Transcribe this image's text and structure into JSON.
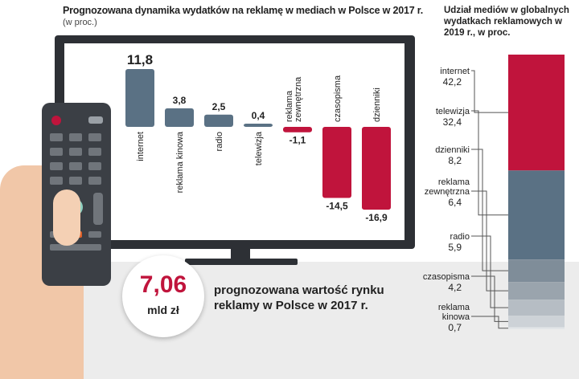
{
  "chart_data": [
    {
      "type": "bar",
      "title": "Prognozowana dynamika wydatków na reklamę w mediach w Polsce w 2017 r.",
      "subtitle": "(w proc.)",
      "categories": [
        "internet",
        "reklama kinowa",
        "radio",
        "telewizja",
        "reklama zewnętrzna",
        "czasopisma",
        "dzienniki"
      ],
      "values": [
        11.8,
        3.8,
        2.5,
        0.4,
        -1.1,
        -14.5,
        -16.9
      ],
      "value_labels": [
        "11,8",
        "3,8",
        "2,5",
        "0,4",
        "-1,1",
        "-14,5",
        "-16,9"
      ],
      "colors": {
        "positive": "#5a7184",
        "negative": "#c0143c"
      }
    },
    {
      "type": "bar",
      "stacked": true,
      "title": "Udział mediów w globalnych wydatkach reklamowych w 2019 r., w proc.",
      "categories": [
        "internet",
        "telewizja",
        "dzienniki",
        "reklama zewnętrzna",
        "radio",
        "czasopisma",
        "reklama kinowa"
      ],
      "values": [
        42.2,
        32.4,
        8.2,
        6.4,
        5.9,
        4.2,
        0.7
      ],
      "value_labels": [
        "42,2",
        "32,4",
        "8,2",
        "6,4",
        "5,9",
        "4,2",
        "0,7"
      ],
      "colors": [
        "#c0143c",
        "#5a7184",
        "#7f8d99",
        "#9aa4ad",
        "#b6bdc4",
        "#cdd2d7",
        "#e2e5e8"
      ]
    }
  ],
  "headline": {
    "value": "7,06",
    "unit": "mld zł",
    "caption": "prognozowana wartość rynku reklamy w Polsce w 2017 r."
  }
}
